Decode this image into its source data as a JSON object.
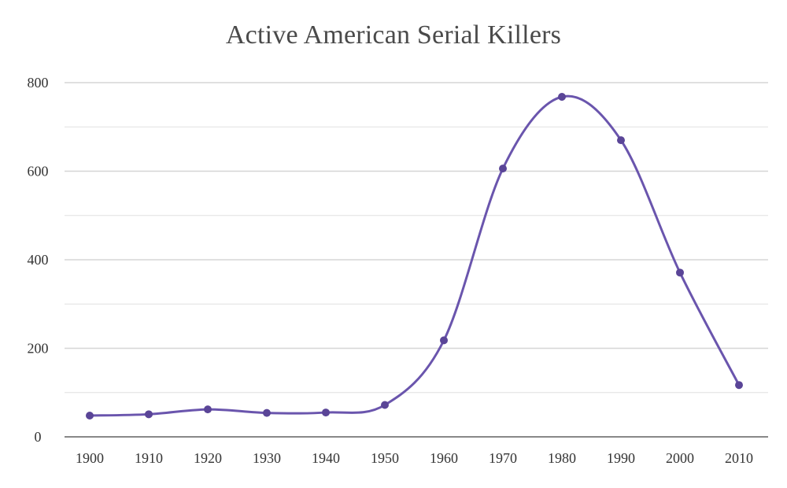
{
  "chart_data": {
    "type": "line",
    "title": "Active American Serial Killers",
    "xlabel": "",
    "ylabel": "",
    "categories": [
      "1900",
      "1910",
      "1920",
      "1930",
      "1940",
      "1950",
      "1960",
      "1970",
      "1980",
      "1990",
      "2000",
      "2010"
    ],
    "series": [
      {
        "name": "Active American Serial Killers",
        "values": [
          48,
          51,
          62,
          54,
          55,
          72,
          218,
          606,
          768,
          670,
          371,
          117
        ]
      }
    ],
    "ylim": [
      0,
      800
    ],
    "yticks": [
      0,
      200,
      400,
      600,
      800
    ],
    "grid": true,
    "legend": "none",
    "colors": {
      "line": "#6a55ad",
      "marker": "#5a4597",
      "grid": "#d6d6d6",
      "axis": "#888888",
      "text": "#333333"
    }
  }
}
